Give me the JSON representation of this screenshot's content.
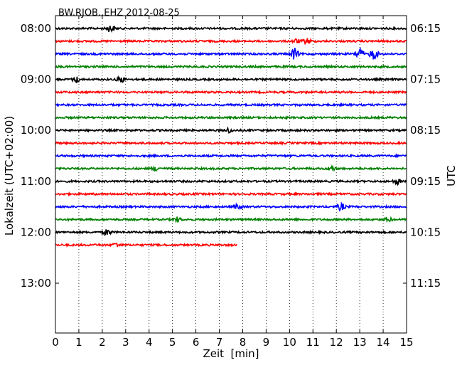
{
  "chart_data": {
    "type": "line",
    "title": "BW.RJOB..EHZ 2012-08-25",
    "xlabel": "Zeit  [min]",
    "ylabel_left": "Lokalzeit (UTC+02:00)",
    "ylabel_right": "UTC",
    "xlim": [
      0,
      15
    ],
    "x_ticks": [
      "0",
      "1",
      "2",
      "3",
      "4",
      "5",
      "6",
      "7",
      "8",
      "9",
      "10",
      "11",
      "12",
      "13",
      "14",
      "15"
    ],
    "left_ticks": [
      "08:00",
      "09:00",
      "10:00",
      "11:00",
      "12:00",
      "13:00"
    ],
    "right_ticks": [
      "06:15",
      "07:15",
      "08:15",
      "09:15",
      "10:15",
      "11:15"
    ],
    "grid": "vertical dotted",
    "color_cycle": [
      "#000000",
      "#ff0000",
      "#0000ff",
      "#008000"
    ],
    "traces": [
      {
        "start": "08:00",
        "end_min": 15
      },
      {
        "start": "08:15",
        "end_min": 15
      },
      {
        "start": "08:30",
        "end_min": 15
      },
      {
        "start": "08:45",
        "end_min": 15
      },
      {
        "start": "09:00",
        "end_min": 15
      },
      {
        "start": "09:15",
        "end_min": 15
      },
      {
        "start": "09:30",
        "end_min": 15
      },
      {
        "start": "09:45",
        "end_min": 15
      },
      {
        "start": "10:00",
        "end_min": 15
      },
      {
        "start": "10:15",
        "end_min": 15
      },
      {
        "start": "10:30",
        "end_min": 15
      },
      {
        "start": "10:45",
        "end_min": 15
      },
      {
        "start": "11:00",
        "end_min": 15
      },
      {
        "start": "11:15",
        "end_min": 15
      },
      {
        "start": "11:30",
        "end_min": 15
      },
      {
        "start": "11:45",
        "end_min": 15
      },
      {
        "start": "12:00",
        "end_min": 15
      },
      {
        "start": "12:15",
        "end_min": 7.75
      }
    ],
    "bursts": [
      {
        "trace": 0,
        "at_min": 2.35,
        "amp": 5
      },
      {
        "trace": 1,
        "at_min": 10.3,
        "amp": 3
      },
      {
        "trace": 1,
        "at_min": 10.75,
        "amp": 4
      },
      {
        "trace": 2,
        "at_min": 10.2,
        "amp": 8
      },
      {
        "trace": 2,
        "at_min": 13.0,
        "amp": 8
      },
      {
        "trace": 2,
        "at_min": 13.6,
        "amp": 8
      },
      {
        "trace": 4,
        "at_min": 0.9,
        "amp": 4
      },
      {
        "trace": 4,
        "at_min": 2.8,
        "amp": 4
      },
      {
        "trace": 8,
        "at_min": 7.4,
        "amp": 3
      },
      {
        "trace": 11,
        "at_min": 4.3,
        "amp": 3
      },
      {
        "trace": 11,
        "at_min": 11.8,
        "amp": 3
      },
      {
        "trace": 12,
        "at_min": 14.6,
        "amp": 4
      },
      {
        "trace": 14,
        "at_min": 12.2,
        "amp": 5
      },
      {
        "trace": 14,
        "at_min": 7.8,
        "amp": 3
      },
      {
        "trace": 15,
        "at_min": 5.2,
        "amp": 3
      },
      {
        "trace": 15,
        "at_min": 14.2,
        "amp": 3
      },
      {
        "trace": 16,
        "at_min": 2.2,
        "amp": 4
      },
      {
        "trace": 17,
        "at_min": 2.6,
        "amp": 3
      }
    ]
  }
}
